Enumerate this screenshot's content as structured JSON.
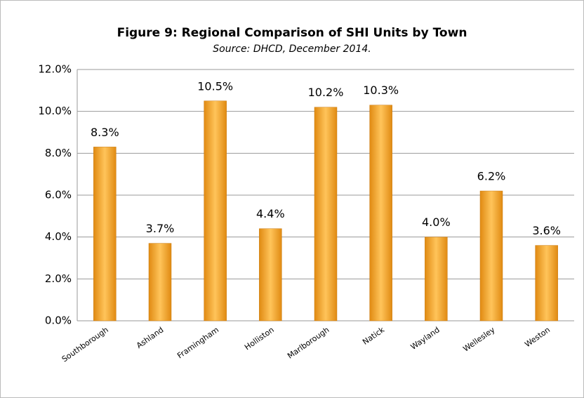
{
  "chart_data": {
    "type": "bar",
    "title": "Figure 9:  Regional Comparison of SHI Units by Town",
    "subtitle": "Source:  DHCD, December 2014.",
    "categories": [
      "Southborough",
      "Ashland",
      "Framingham",
      "Holliston",
      "Marlborough",
      "Natick",
      "Wayland",
      "Wellesley",
      "Weston"
    ],
    "values": [
      8.3,
      3.7,
      10.5,
      4.4,
      10.2,
      10.3,
      4.0,
      6.2,
      3.6
    ],
    "value_labels": [
      "8.3%",
      "3.7%",
      "10.5%",
      "4.4%",
      "10.2%",
      "10.3%",
      "4.0%",
      "6.2%",
      "3.6%"
    ],
    "color": "#f5a623",
    "ylim": [
      0,
      12
    ],
    "yticks": [
      {
        "value": 0,
        "label": "0.0%"
      },
      {
        "value": 2,
        "label": "2.0%"
      },
      {
        "value": 4,
        "label": "4.0%"
      },
      {
        "value": 6,
        "label": "6.0%"
      },
      {
        "value": 8,
        "label": "8.0%"
      },
      {
        "value": 10,
        "label": "10.0%"
      },
      {
        "value": 12,
        "label": "12.0%"
      }
    ],
    "grid": true
  }
}
